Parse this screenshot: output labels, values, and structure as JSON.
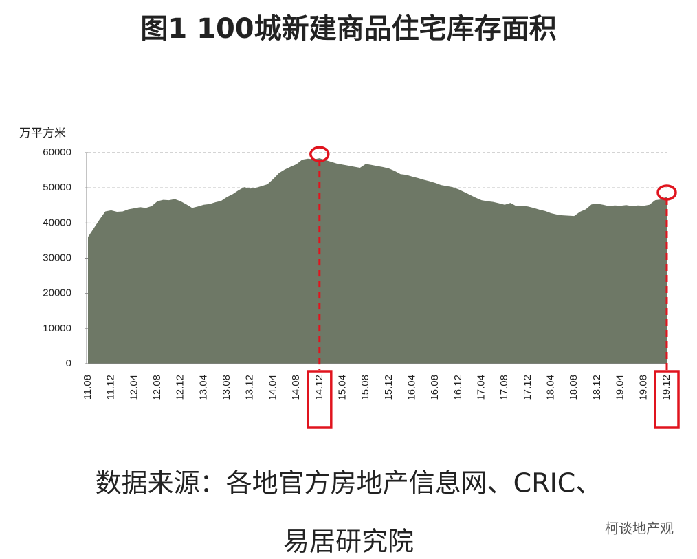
{
  "chart_data": {
    "type": "area",
    "title": "图1  100城新建商品住宅库存面积",
    "y_unit": "万平方米",
    "source": [
      "数据来源：各地官方房地产信息网、CRIC、",
      "易居研究院"
    ],
    "watermark": "柯谈地产观",
    "color": "#6e7866",
    "highlight_color": "#e0141e",
    "highlights": [
      40,
      100
    ],
    "categories": [
      "11.08",
      null,
      null,
      null,
      "11.12",
      null,
      null,
      null,
      "12.04",
      null,
      null,
      null,
      "12.08",
      null,
      null,
      null,
      "12.12",
      null,
      null,
      null,
      "13.04",
      null,
      null,
      null,
      "13.08",
      null,
      null,
      null,
      "13.12",
      null,
      null,
      null,
      "14.04",
      null,
      null,
      null,
      "14.08",
      null,
      null,
      null,
      "14.12",
      null,
      null,
      null,
      "15.04",
      null,
      null,
      null,
      "15.08",
      null,
      null,
      null,
      "15.12",
      null,
      null,
      null,
      "16.04",
      null,
      null,
      null,
      "16.08",
      null,
      null,
      null,
      "16.12",
      null,
      null,
      null,
      "17.04",
      null,
      null,
      null,
      "17.08",
      null,
      null,
      null,
      "17.12",
      null,
      null,
      null,
      "18.04",
      null,
      null,
      null,
      "18.08",
      null,
      null,
      null,
      "18.12",
      null,
      null,
      null,
      "19.04",
      null,
      null,
      null,
      "19.08",
      null,
      null,
      null,
      "19.12"
    ],
    "values": [
      36000,
      38500,
      41000,
      43300,
      43600,
      43200,
      43300,
      43900,
      44200,
      44500,
      44300,
      44800,
      46200,
      46600,
      46500,
      46800,
      46200,
      45300,
      44300,
      44700,
      45200,
      45400,
      45900,
      46300,
      47400,
      48200,
      49300,
      50200,
      49800,
      50000,
      50500,
      51000,
      52500,
      54200,
      55200,
      56000,
      56700,
      58000,
      58300,
      58100,
      58400,
      57900,
      57400,
      56900,
      56600,
      56300,
      56000,
      55700,
      56800,
      56500,
      56200,
      55900,
      55500,
      54800,
      53900,
      53700,
      53200,
      52800,
      52300,
      51900,
      51400,
      50800,
      50500,
      50200,
      49600,
      48800,
      48000,
      47200,
      46500,
      46200,
      46000,
      45600,
      45200,
      45700,
      44800,
      44900,
      44700,
      44300,
      43800,
      43400,
      42800,
      42400,
      42200,
      42100,
      42000,
      43200,
      43900,
      45300,
      45500,
      45200,
      44800,
      45000,
      44900,
      45100,
      44800,
      45000,
      44900,
      45200,
      46500,
      46700,
      47500
    ],
    "ylim": [
      0,
      60000
    ],
    "yticks": [
      0,
      10000,
      20000,
      30000,
      40000,
      50000,
      60000
    ],
    "grid": true
  }
}
